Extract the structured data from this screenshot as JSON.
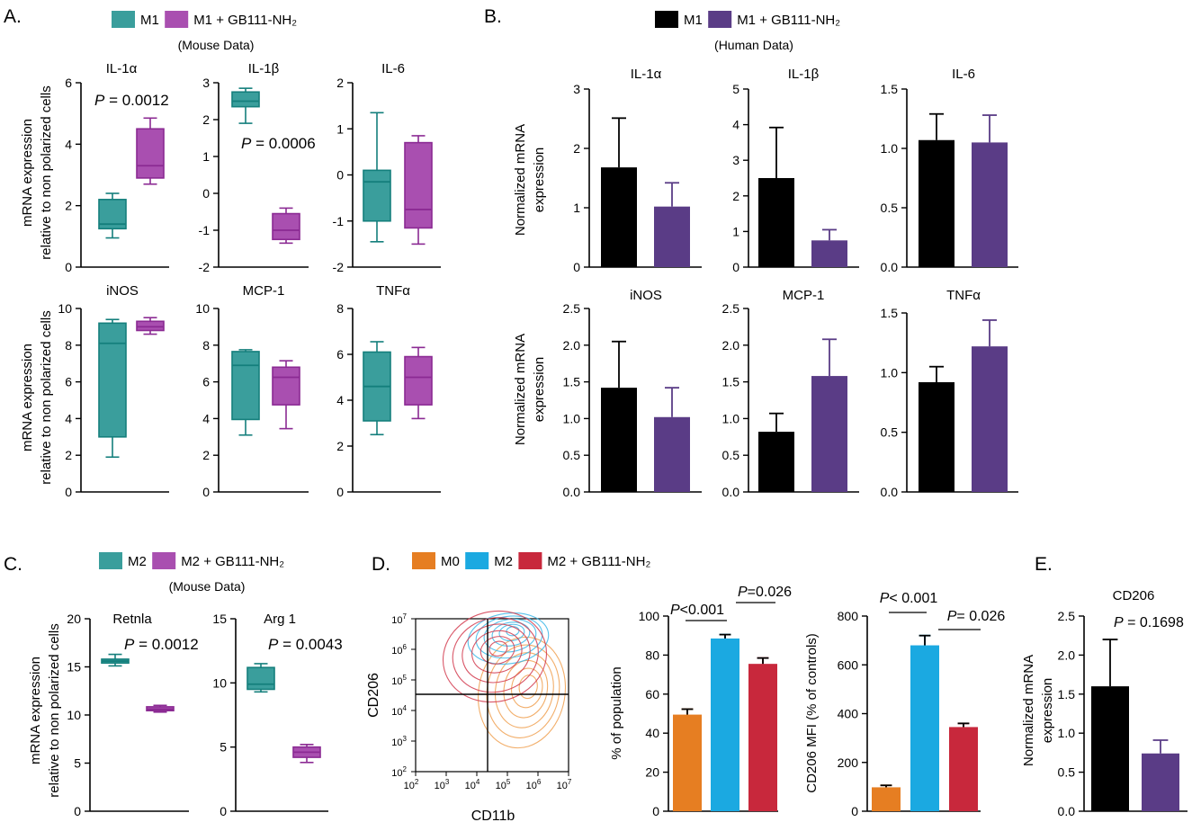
{
  "panel_letters": {
    "A": "A.",
    "B": "B.",
    "C": "C.",
    "D": "D.",
    "E": "E."
  },
  "colors": {
    "teal_fill": "#3a9e9c",
    "teal_dark": "#147f7c",
    "purple_fill": "#a94fb0",
    "purple_dark": "#8b2a93",
    "black": "#000000",
    "human_purple": "#5a3c86",
    "m0_orange": "#e67e22",
    "m2_blue": "#1ba9e1",
    "m2gb_red": "#c8283c"
  },
  "legends": {
    "A": {
      "items": [
        "M1",
        "M1 + GB111-NH₂"
      ],
      "sub": "(Mouse Data)"
    },
    "B": {
      "items": [
        "M1",
        "M1 + GB111-NH₂"
      ],
      "sub": "(Human Data)"
    },
    "C": {
      "items": [
        "M2",
        "M2 + GB111-NH₂"
      ],
      "sub": "(Mouse Data)"
    },
    "D": {
      "items": [
        "M0",
        "M2",
        "M2 + GB111-NH₂"
      ]
    }
  },
  "chart_data": [
    {
      "id": "A1",
      "type": "box",
      "title": "IL-1α",
      "ylabel": "mRNA expression\nrelative to non polarized cells",
      "ylim": [
        0,
        6
      ],
      "yticks": [
        0,
        2,
        4,
        6
      ],
      "annotation": "P = 0.0012",
      "boxes": [
        {
          "min": 0.95,
          "q1": 1.25,
          "median": 1.4,
          "q3": 2.2,
          "max": 2.4,
          "color": "teal"
        },
        {
          "min": 2.7,
          "q1": 2.9,
          "median": 3.3,
          "q3": 4.5,
          "max": 4.85,
          "color": "purple"
        }
      ]
    },
    {
      "id": "A2",
      "type": "box",
      "title": "IL-1β",
      "ylim": [
        -2,
        3
      ],
      "yticks": [
        -2,
        -1,
        0,
        1,
        2,
        3
      ],
      "annotation": "P = 0.0006",
      "boxes": [
        {
          "min": 1.9,
          "q1": 2.35,
          "median": 2.5,
          "q3": 2.75,
          "max": 2.85,
          "color": "teal"
        },
        {
          "min": -1.35,
          "q1": -1.25,
          "median": -1.0,
          "q3": -0.55,
          "max": -0.4,
          "color": "purple"
        }
      ]
    },
    {
      "id": "A3",
      "type": "box",
      "title": "IL-6",
      "ylim": [
        -2,
        2
      ],
      "yticks": [
        -2,
        -1,
        0,
        1,
        2
      ],
      "boxes": [
        {
          "min": -1.45,
          "q1": -1.0,
          "median": -0.15,
          "q3": 0.1,
          "max": 1.35,
          "color": "teal"
        },
        {
          "min": -1.5,
          "q1": -1.15,
          "median": -0.75,
          "q3": 0.7,
          "max": 0.85,
          "color": "purple"
        }
      ]
    },
    {
      "id": "A4",
      "type": "box",
      "title": "iNOS",
      "ylabel": "mRNA expression\nrelative to non polarized cells",
      "ylim": [
        0,
        10
      ],
      "yticks": [
        0,
        2,
        4,
        6,
        8,
        10
      ],
      "boxes": [
        {
          "min": 1.9,
          "q1": 3.0,
          "median": 8.1,
          "q3": 9.2,
          "max": 9.4,
          "color": "teal"
        },
        {
          "min": 8.6,
          "q1": 8.8,
          "median": 9.0,
          "q3": 9.3,
          "max": 9.5,
          "color": "purple"
        }
      ]
    },
    {
      "id": "A5",
      "type": "box",
      "title": "MCP-1",
      "ylim": [
        0,
        10
      ],
      "yticks": [
        0,
        2,
        4,
        6,
        8,
        10
      ],
      "boxes": [
        {
          "min": 3.1,
          "q1": 3.95,
          "median": 6.9,
          "q3": 7.65,
          "max": 7.75,
          "color": "teal"
        },
        {
          "min": 3.45,
          "q1": 4.75,
          "median": 6.25,
          "q3": 6.8,
          "max": 7.15,
          "color": "purple"
        }
      ]
    },
    {
      "id": "A6",
      "type": "box",
      "title": "TNFα",
      "ylim": [
        0,
        8
      ],
      "yticks": [
        0,
        2,
        4,
        6,
        8
      ],
      "boxes": [
        {
          "min": 2.5,
          "q1": 3.1,
          "median": 4.6,
          "q3": 6.1,
          "max": 6.55,
          "color": "teal"
        },
        {
          "min": 3.2,
          "q1": 3.8,
          "median": 5.0,
          "q3": 5.9,
          "max": 6.3,
          "color": "purple"
        }
      ]
    },
    {
      "id": "B1",
      "type": "bar",
      "title": "IL-1α",
      "ylabel": "Normalized mRNA\nexpression",
      "ylim": [
        0,
        3
      ],
      "yticks": [
        "0",
        "1",
        "2",
        "3"
      ],
      "values": [
        1.68,
        1.02
      ],
      "errors": [
        0.83,
        0.4
      ],
      "colors": [
        "black",
        "human_purple"
      ]
    },
    {
      "id": "B2",
      "type": "bar",
      "title": "IL-1β",
      "ylim": [
        0,
        5
      ],
      "yticks": [
        "0",
        "1",
        "2",
        "3",
        "4",
        "5"
      ],
      "values": [
        2.5,
        0.75
      ],
      "errors": [
        1.42,
        0.3
      ],
      "colors": [
        "black",
        "human_purple"
      ]
    },
    {
      "id": "B3",
      "type": "bar",
      "title": "IL-6",
      "ylim": [
        0,
        1.5
      ],
      "yticks": [
        "0.0",
        "0.5",
        "1.0",
        "1.5"
      ],
      "values": [
        1.07,
        1.05
      ],
      "errors": [
        0.22,
        0.23
      ],
      "colors": [
        "black",
        "human_purple"
      ]
    },
    {
      "id": "B4",
      "type": "bar",
      "title": "iNOS",
      "ylabel": "Normalized mRNA\nexpression",
      "ylim": [
        0,
        2.5
      ],
      "yticks": [
        "0.0",
        "0.5",
        "1.0",
        "1.5",
        "2.0",
        "2.5"
      ],
      "values": [
        1.42,
        1.02
      ],
      "errors": [
        0.63,
        0.4
      ],
      "colors": [
        "black",
        "human_purple"
      ]
    },
    {
      "id": "B5",
      "type": "bar",
      "title": "MCP-1",
      "ylim": [
        0,
        2.5
      ],
      "yticks": [
        "0.0",
        "0.5",
        "1.0",
        "1.5",
        "2.0",
        "2.5"
      ],
      "values": [
        0.82,
        1.58
      ],
      "errors": [
        0.25,
        0.5
      ],
      "colors": [
        "black",
        "human_purple"
      ]
    },
    {
      "id": "B6",
      "type": "bar",
      "title": "TNFα",
      "ylim": [
        0,
        1.5
      ],
      "yticks": [
        "0.0",
        "0.5",
        "1.0",
        "1.5"
      ],
      "values": [
        0.92,
        1.22
      ],
      "errors": [
        0.13,
        0.22
      ],
      "colors": [
        "black",
        "human_purple"
      ]
    },
    {
      "id": "C1",
      "type": "box",
      "title": "Retnla",
      "ylabel": "mRNA expression\nrelative to non polarized cells",
      "ylim": [
        0,
        20
      ],
      "yticks": [
        0,
        5,
        10,
        15,
        20
      ],
      "annotation": "P = 0.0012",
      "boxes": [
        {
          "min": 15.1,
          "q1": 15.4,
          "median": 15.6,
          "q3": 15.8,
          "max": 16.3,
          "color": "teal"
        },
        {
          "min": 10.3,
          "q1": 10.45,
          "median": 10.6,
          "q3": 10.85,
          "max": 11.0,
          "color": "purple"
        }
      ]
    },
    {
      "id": "C2",
      "type": "box",
      "title": "Arg 1",
      "ylim": [
        0,
        15
      ],
      "yticks": [
        0,
        5,
        10,
        15
      ],
      "annotation": "P = 0.0043",
      "boxes": [
        {
          "min": 9.3,
          "q1": 9.5,
          "median": 9.9,
          "q3": 11.2,
          "max": 11.5,
          "color": "teal"
        },
        {
          "min": 3.8,
          "q1": 4.2,
          "median": 4.6,
          "q3": 5.0,
          "max": 5.2,
          "color": "purple"
        }
      ]
    },
    {
      "id": "D1",
      "type": "contour",
      "xlabel": "CD11b",
      "ylabel": "CD206",
      "tick_exps": [
        "2",
        "3",
        "4",
        "5",
        "6",
        "7"
      ]
    },
    {
      "id": "D2",
      "type": "bar",
      "ylabel": "% of population",
      "ylim": [
        0,
        100
      ],
      "yticks": [
        "0",
        "20",
        "40",
        "60",
        "80",
        "100"
      ],
      "values": [
        49.5,
        88.5,
        75.5
      ],
      "errors": [
        2.8,
        2.0,
        3.0
      ],
      "colors": [
        "m0_orange",
        "m2_blue",
        "m2gb_red"
      ],
      "annotations": [
        "P<0.001",
        "P=0.026"
      ]
    },
    {
      "id": "D3",
      "type": "bar",
      "ylabel": "CD206 MFI (% of controls)",
      "ylim": [
        0,
        800
      ],
      "yticks": [
        "0",
        "200",
        "400",
        "600",
        "800"
      ],
      "values": [
        98,
        680,
        345
      ],
      "errors": [
        8,
        40,
        15
      ],
      "colors": [
        "m0_orange",
        "m2_blue",
        "m2gb_red"
      ],
      "annotations": [
        "P< 0.001",
        "P= 0.026"
      ]
    },
    {
      "id": "E1",
      "type": "bar",
      "title": "CD206",
      "ylabel": "Normalized mRNA\nexpression",
      "ylim": [
        0,
        2.5
      ],
      "yticks": [
        "0.0",
        "0.5",
        "1.0",
        "1.5",
        "2.0",
        "2.5"
      ],
      "values": [
        1.6,
        0.74
      ],
      "errors": [
        0.6,
        0.17
      ],
      "colors": [
        "black",
        "human_purple"
      ],
      "annotation": "P = 0.1698"
    }
  ]
}
